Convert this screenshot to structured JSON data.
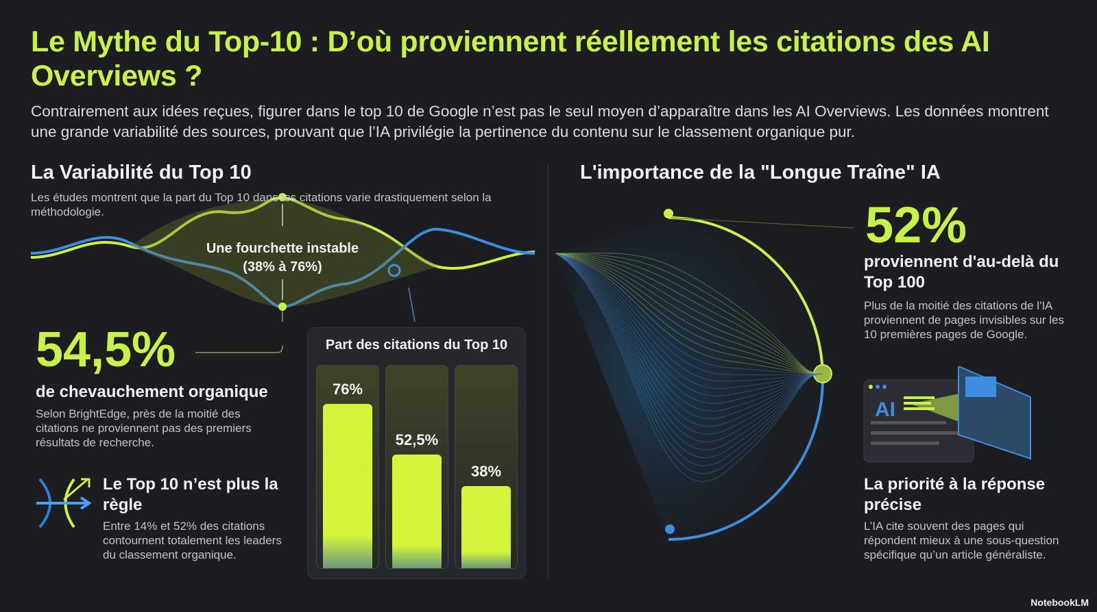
{
  "header": {
    "title": "Le Mythe du Top-10 : D’où proviennent réellement les citations des AI Overviews ?",
    "intro": "Contrairement aux idées reçues, figurer dans le top 10 de Google n’est pas le seul moyen d’apparaître dans les AI Overviews. Les données montrent une grande variabilité des sources, prouvant que l’IA privilégie la pertinence du contenu sur le classement organique pur."
  },
  "left": {
    "heading": "La Variabilité du Top 10",
    "description": "Les études montrent que la part du Top 10 dans les citations varie drastiquement selon la méthodologie.",
    "wave_label": "Une fourchette instable (38% à 76%)",
    "stat": {
      "value": "54,5%",
      "label": "de chevauchement organique",
      "text": "Selon BrightEdge, près de la moitié des citations ne proviennent pas des premiers résultats de recherche."
    },
    "callout": {
      "title": "Le Top 10 n’est plus la règle",
      "text": "Entre 14% et 52% des citations contournent totalement les leaders du classement organique."
    }
  },
  "chart_data": {
    "type": "bar",
    "title": "Part des citations du Top 10",
    "values": [
      76,
      52.5,
      38
    ],
    "value_labels": [
      "76%",
      "52,5%",
      "38%"
    ],
    "color": "#d4f53c"
  },
  "right": {
    "heading": "L'importance de la \"Longue Traîne\" IA",
    "stat": {
      "value": "52%",
      "label": "proviennent d'au-delà du Top 100",
      "text": "Plus de la moitié des citations de l'IA proviennent de pages invisibles sur les 10 premières pages de Google."
    },
    "icon_label": "AI",
    "callout": {
      "title": "La priorité à la réponse précise",
      "text": "L’IA cite souvent des pages qui répondent mieux à une sous-question spécifique qu’un article généraliste."
    }
  },
  "footer": {
    "brand": "NotebookLM"
  }
}
